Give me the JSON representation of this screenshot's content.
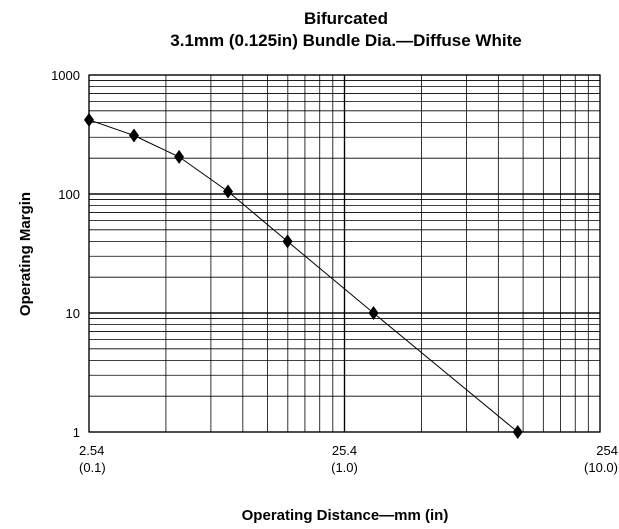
{
  "chart_data": {
    "type": "line",
    "title": "Bifurcated",
    "subtitle": "3.1mm (0.125in) Bundle Dia.—Diffuse White",
    "xlabel": "Operating Distance—mm (in)",
    "ylabel": "Operating Margin",
    "x_scale": "log",
    "y_scale": "log",
    "xlim": [
      2.54,
      254
    ],
    "ylim": [
      1,
      1000
    ],
    "grid": true,
    "x_ticks": [
      {
        "value": 2.54,
        "label": "2.54",
        "sublabel": "(0.1)"
      },
      {
        "value": 25.4,
        "label": "25.4",
        "sublabel": "(1.0)"
      },
      {
        "value": 254,
        "label": "254",
        "sublabel": "(10.0)"
      }
    ],
    "y_ticks": [
      {
        "value": 1,
        "label": "1"
      },
      {
        "value": 10,
        "label": "10"
      },
      {
        "value": 100,
        "label": "100"
      },
      {
        "value": 1000,
        "label": "1000"
      }
    ],
    "marker": "diamond",
    "series": [
      {
        "x": [
          2.54,
          3.81,
          5.72,
          8.89,
          15.2,
          33.0,
          121
        ],
        "y": [
          420,
          310,
          205,
          105,
          40,
          10,
          1.0
        ]
      }
    ]
  }
}
